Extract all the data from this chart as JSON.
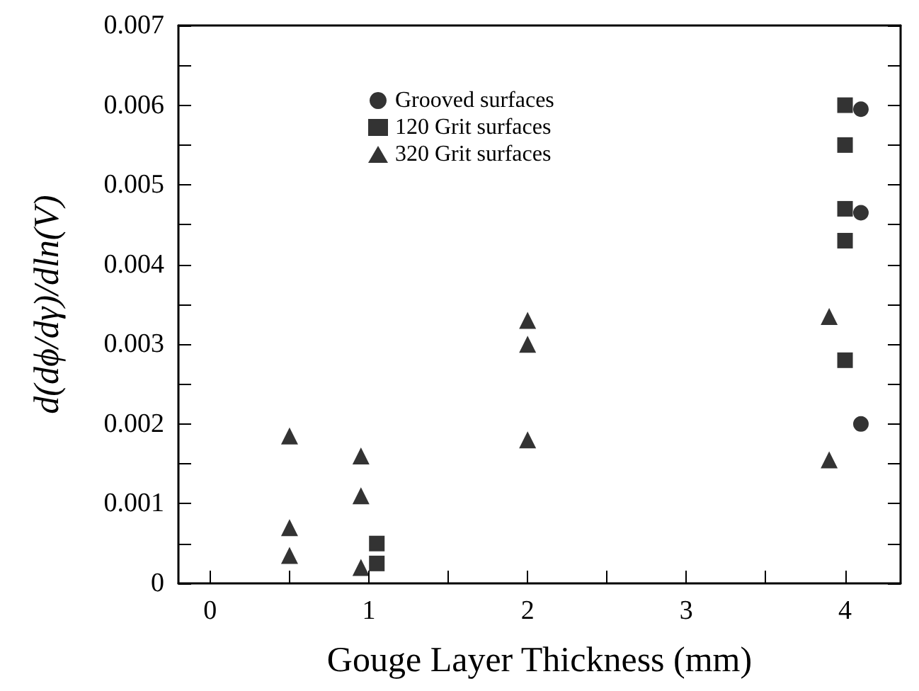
{
  "chart_data": {
    "type": "scatter",
    "xlabel": "Gouge Layer Thickness (mm)",
    "ylabel": "d(dϕ/dγ)/dln(V)",
    "xlim": [
      -0.2,
      4.35
    ],
    "xticks": [
      0,
      {
        "value": 0.5,
        "label": null
      },
      1,
      {
        "value": 1.5,
        "label": null
      },
      2,
      {
        "value": 2.5,
        "label": null
      },
      3,
      {
        "value": 3.5,
        "label": null
      },
      4
    ],
    "ylim": [
      0,
      0.007
    ],
    "yticks": [
      0,
      {
        "value": 0.0005,
        "label": null
      },
      0.001,
      {
        "value": 0.0015,
        "label": null
      },
      0.002,
      {
        "value": 0.0025,
        "label": null
      },
      0.003,
      {
        "value": 0.0035,
        "label": null
      },
      0.004,
      {
        "value": 0.0045,
        "label": null
      },
      0.005,
      {
        "value": 0.0055,
        "label": null
      },
      0.006,
      {
        "value": 0.0065,
        "label": null
      },
      0.007
    ],
    "grid": false,
    "legend": "top",
    "series": [
      {
        "name": "Grooved surfaces",
        "color": "#000000",
        "marker": "circle",
        "x": [
          4.1,
          4.1,
          4.1
        ],
        "values": [
          0.00595,
          0.00465,
          0.002
        ]
      },
      {
        "name": "120 Grit surfaces",
        "color": "#000000",
        "marker": "square",
        "x": [
          4.0,
          4.0,
          4.0,
          4.0,
          4.0,
          1.05,
          1.05
        ],
        "values": [
          0.006,
          0.0055,
          0.0047,
          0.0043,
          0.0028,
          0.0005,
          0.00025
        ]
      },
      {
        "name": "320 Grit surfaces",
        "color": "#000000",
        "marker": "triangle",
        "x": [
          0.5,
          0.5,
          0.5,
          0.95,
          0.95,
          0.95,
          2,
          2,
          2,
          3.9,
          3.9
        ],
        "values": [
          0.00185,
          0.0007,
          0.00035,
          0.0016,
          0.0011,
          0.0002,
          0.0033,
          0.003,
          0.0018,
          0.00335,
          0.00155
        ]
      }
    ]
  }
}
